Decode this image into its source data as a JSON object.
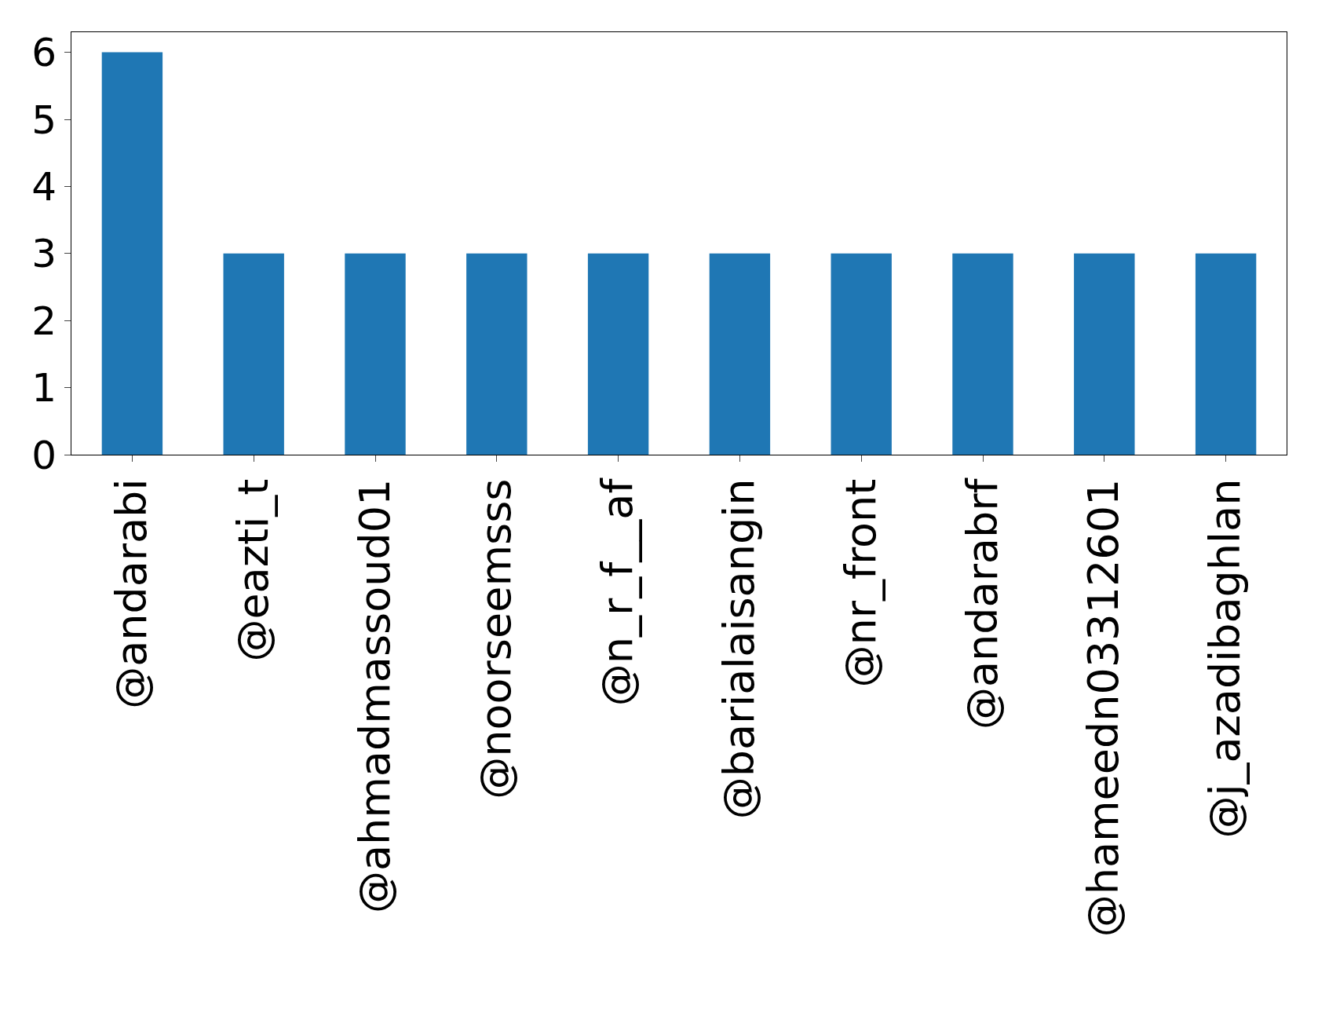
{
  "chart_data": {
    "type": "bar",
    "categories": [
      "@andarabi",
      "@eazti_t",
      "@ahmadmassoud01",
      "@noorseemsss",
      "@n_r_f__af",
      "@barialaisangin",
      "@nr_front",
      "@andarabrf",
      "@hameedn03312601",
      "@j_azadibaghlan"
    ],
    "values": [
      6,
      3,
      3,
      3,
      3,
      3,
      3,
      3,
      3,
      3
    ],
    "color": "#1f77b4",
    "ylim": [
      0,
      6.3
    ],
    "yticks": [
      0,
      1,
      2,
      3,
      4,
      5,
      6
    ]
  }
}
